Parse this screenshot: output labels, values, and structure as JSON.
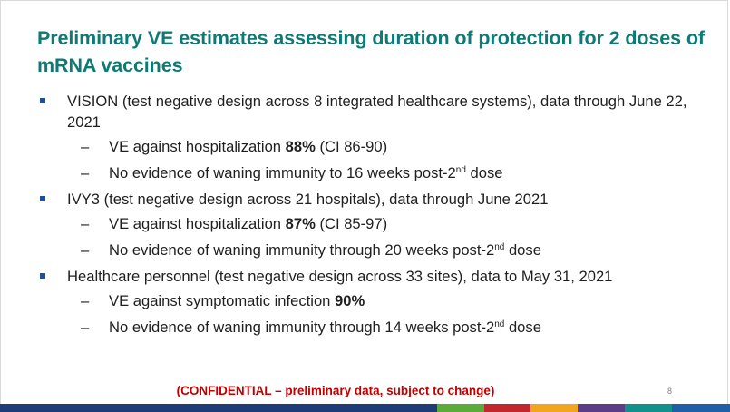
{
  "title": "Preliminary VE estimates assessing duration of protection for 2 doses of mRNA vaccines",
  "bullets": [
    {
      "text": "VISION (test negative design across 8 integrated healthcare systems), data through June 22, 2021",
      "subs": [
        {
          "pre": "VE against hospitalization ",
          "bold": "88%",
          "post": " (CI 86-90)"
        },
        {
          "pre": "No evidence of waning immunity to 16 weeks post-2",
          "sup": "nd",
          "post": " dose"
        }
      ]
    },
    {
      "text": "IVY3 (test negative design across 21 hospitals), data through June 2021",
      "subs": [
        {
          "pre": "VE against hospitalization ",
          "bold": "87%",
          "post": " (CI 85-97)"
        },
        {
          "pre": "No evidence of waning immunity through 20 weeks post-2",
          "sup": "nd",
          "post": " dose"
        }
      ]
    },
    {
      "text": "Healthcare personnel (test negative design across 33 sites), data to May 31, 2021",
      "subs": [
        {
          "pre": "VE against symptomatic infection ",
          "bold": "90%",
          "post": ""
        },
        {
          "pre": "No evidence of waning immunity through 14 weeks post-2",
          "sup": "nd",
          "post": " dose"
        }
      ]
    }
  ],
  "dash": "–",
  "footer": "(CONFIDENTIAL – preliminary data, subject to change)",
  "page_number": "8",
  "colors": {
    "title": "#0e7a74",
    "bullet": "#1f4e9c",
    "confidential": "#c00000"
  }
}
